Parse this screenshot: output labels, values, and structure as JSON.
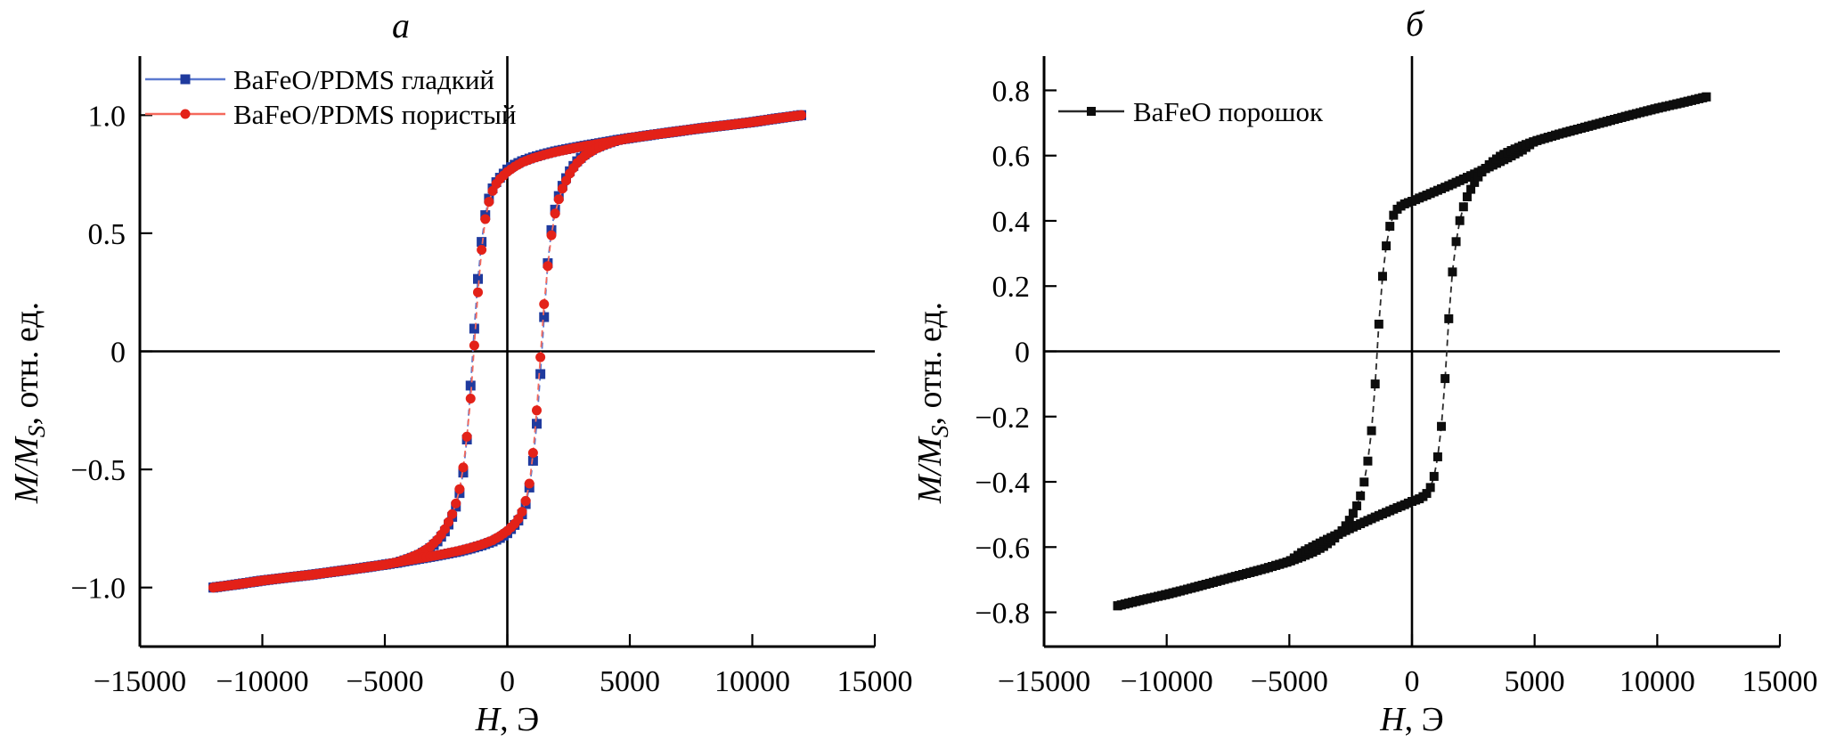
{
  "figure": {
    "background": "#ffffff",
    "description_labels": {
      "panel_a_letter": "а",
      "panel_b_letter": "б"
    }
  },
  "chart_data": [
    {
      "type": "line",
      "panel_label": "а",
      "xlabel": {
        "italic": "H",
        "rest": ", Э"
      },
      "ylabel": {
        "italic": "M/M",
        "sub": "S",
        "rest": ", отн. ед."
      },
      "xlim": [
        -15000,
        15000
      ],
      "ylim": [
        -1.25,
        1.25
      ],
      "grid": false,
      "legend_position": "upper left",
      "axis_color": "#000000",
      "x_ticks": [
        {
          "v": -15000,
          "label": "−15000"
        },
        {
          "v": -10000,
          "label": "−10000"
        },
        {
          "v": -5000,
          "label": "−5000"
        },
        {
          "v": 0,
          "label": "0"
        },
        {
          "v": 5000,
          "label": "5000"
        },
        {
          "v": 10000,
          "label": "10000"
        },
        {
          "v": 15000,
          "label": "15000"
        }
      ],
      "y_ticks": [
        {
          "v": 1.0,
          "label": "1.0"
        },
        {
          "v": 0.5,
          "label": "0.5"
        },
        {
          "v": 0,
          "label": "0"
        },
        {
          "v": -0.5,
          "label": "−0.5"
        },
        {
          "v": -1.0,
          "label": "−1.0"
        }
      ],
      "series": [
        {
          "name": "BaFeO/PDMS гладкий",
          "marker": "square",
          "marker_size": 11,
          "marker_color": "#1f3a9e",
          "line_color": "#5b79cf",
          "line_dash": "7,5",
          "marker_step_oe": 150,
          "coercivity_oe": 1450,
          "remanence": 0.77,
          "saturation": 1.0,
          "upper_branch": [
            [
              -12000,
              -1.0
            ],
            [
              -11000,
              -0.986
            ],
            [
              -10000,
              -0.971
            ],
            [
              -9000,
              -0.958
            ],
            [
              -8000,
              -0.946
            ],
            [
              -7000,
              -0.932
            ],
            [
              -6000,
              -0.918
            ],
            [
              -5000,
              -0.903
            ],
            [
              -4500,
              -0.895
            ],
            [
              -4000,
              -0.878
            ],
            [
              -3600,
              -0.862
            ],
            [
              -3200,
              -0.838
            ],
            [
              -2800,
              -0.8
            ],
            [
              -2500,
              -0.755
            ],
            [
              -2200,
              -0.69
            ],
            [
              -2000,
              -0.625
            ],
            [
              -1850,
              -0.55
            ],
            [
              -1700,
              -0.44
            ],
            [
              -1550,
              -0.24
            ],
            [
              -1450,
              -0.05
            ],
            [
              -1380,
              0.05
            ],
            [
              -1250,
              0.25
            ],
            [
              -1100,
              0.42
            ],
            [
              -950,
              0.55
            ],
            [
              -800,
              0.63
            ],
            [
              -650,
              0.68
            ],
            [
              -500,
              0.71
            ],
            [
              -300,
              0.735
            ],
            [
              0,
              0.77
            ],
            [
              300,
              0.79
            ],
            [
              600,
              0.805
            ],
            [
              1000,
              0.82
            ],
            [
              1500,
              0.835
            ],
            [
              2000,
              0.848
            ],
            [
              2500,
              0.858
            ],
            [
              3000,
              0.868
            ],
            [
              3500,
              0.877
            ],
            [
              4000,
              0.886
            ],
            [
              4500,
              0.895
            ],
            [
              5000,
              0.903
            ],
            [
              6000,
              0.918
            ],
            [
              7000,
              0.932
            ],
            [
              8000,
              0.946
            ],
            [
              9000,
              0.958
            ],
            [
              10000,
              0.97
            ],
            [
              11000,
              0.986
            ],
            [
              12000,
              1.0
            ]
          ],
          "lower_branch": "mirror_of_upper"
        },
        {
          "name": "BaFeO/PDMS пористый",
          "marker": "circle",
          "marker_size": 11,
          "marker_color": "#e32118",
          "line_color": "#f4695c",
          "line_dash": "7,5",
          "marker_step_oe": 150,
          "coercivity_oe": 1380,
          "remanence": 0.76,
          "saturation": 1.0,
          "upper_branch": [
            [
              -12000,
              -1.0
            ],
            [
              -11000,
              -0.986
            ],
            [
              -10000,
              -0.971
            ],
            [
              -9000,
              -0.958
            ],
            [
              -8000,
              -0.946
            ],
            [
              -7000,
              -0.932
            ],
            [
              -6000,
              -0.918
            ],
            [
              -5000,
              -0.903
            ],
            [
              -4500,
              -0.893
            ],
            [
              -4000,
              -0.875
            ],
            [
              -3600,
              -0.857
            ],
            [
              -3200,
              -0.832
            ],
            [
              -2800,
              -0.792
            ],
            [
              -2500,
              -0.745
            ],
            [
              -2200,
              -0.678
            ],
            [
              -2000,
              -0.61
            ],
            [
              -1850,
              -0.53
            ],
            [
              -1700,
              -0.415
            ],
            [
              -1500,
              -0.2
            ],
            [
              -1380,
              -0.02
            ],
            [
              -1300,
              0.1
            ],
            [
              -1180,
              0.28
            ],
            [
              -1050,
              0.43
            ],
            [
              -900,
              0.56
            ],
            [
              -760,
              0.63
            ],
            [
              -620,
              0.675
            ],
            [
              -480,
              0.705
            ],
            [
              -300,
              0.73
            ],
            [
              0,
              0.76
            ],
            [
              300,
              0.782
            ],
            [
              600,
              0.8
            ],
            [
              1000,
              0.816
            ],
            [
              1500,
              0.832
            ],
            [
              2000,
              0.845
            ],
            [
              2500,
              0.856
            ],
            [
              3000,
              0.866
            ],
            [
              3500,
              0.875
            ],
            [
              4000,
              0.884
            ],
            [
              4500,
              0.893
            ],
            [
              5000,
              0.903
            ],
            [
              6000,
              0.918
            ],
            [
              7000,
              0.932
            ],
            [
              8000,
              0.946
            ],
            [
              9000,
              0.958
            ],
            [
              10000,
              0.97
            ],
            [
              11000,
              0.986
            ],
            [
              12000,
              1.0
            ]
          ],
          "lower_branch": "mirror_of_upper"
        }
      ]
    },
    {
      "type": "line",
      "panel_label": "б",
      "xlabel": {
        "italic": "H",
        "rest": ", Э"
      },
      "ylabel": {
        "italic": "M/M",
        "sub": "S",
        "rest": ", отн. ед."
      },
      "xlim": [
        -15000,
        15000
      ],
      "ylim": [
        -0.905,
        0.905
      ],
      "grid": false,
      "legend_position": "upper left",
      "axis_color": "#000000",
      "x_ticks": [
        {
          "v": -15000,
          "label": "−15000"
        },
        {
          "v": -10000,
          "label": "−10000"
        },
        {
          "v": -5000,
          "label": "−5000"
        },
        {
          "v": 0,
          "label": "0"
        },
        {
          "v": 5000,
          "label": "5000"
        },
        {
          "v": 10000,
          "label": "10000"
        },
        {
          "v": 15000,
          "label": "15000"
        }
      ],
      "y_ticks": [
        {
          "v": 0.8,
          "label": "0.8"
        },
        {
          "v": 0.6,
          "label": "0.6"
        },
        {
          "v": 0.4,
          "label": "0.4"
        },
        {
          "v": 0.2,
          "label": "0.2"
        },
        {
          "v": 0,
          "label": "0"
        },
        {
          "v": -0.2,
          "label": "−0.2"
        },
        {
          "v": -0.4,
          "label": "−0.4"
        },
        {
          "v": -0.6,
          "label": "−0.6"
        },
        {
          "v": -0.8,
          "label": "−0.8"
        }
      ],
      "series": [
        {
          "name": "BaFeO порошок",
          "marker": "square",
          "marker_size": 10,
          "marker_color": "#0d0d0d",
          "line_color": "#2a2a2a",
          "line_dash": "7,5",
          "marker_step_oe": 150,
          "coercivity_oe": 1420,
          "remanence": 0.46,
          "saturation": 0.78,
          "upper_branch": [
            [
              -12000,
              -0.78
            ],
            [
              -11000,
              -0.762
            ],
            [
              -10000,
              -0.745
            ],
            [
              -9000,
              -0.726
            ],
            [
              -8000,
              -0.706
            ],
            [
              -7000,
              -0.686
            ],
            [
              -6000,
              -0.666
            ],
            [
              -5500,
              -0.655
            ],
            [
              -5000,
              -0.644
            ],
            [
              -4500,
              -0.63
            ],
            [
              -4000,
              -0.614
            ],
            [
              -3600,
              -0.598
            ],
            [
              -3200,
              -0.576
            ],
            [
              -2800,
              -0.546
            ],
            [
              -2500,
              -0.512
            ],
            [
              -2200,
              -0.466
            ],
            [
              -2000,
              -0.42
            ],
            [
              -1850,
              -0.362
            ],
            [
              -1700,
              -0.285
            ],
            [
              -1550,
              -0.16
            ],
            [
              -1450,
              -0.04
            ],
            [
              -1380,
              0.05
            ],
            [
              -1250,
              0.195
            ],
            [
              -1100,
              0.3
            ],
            [
              -950,
              0.37
            ],
            [
              -800,
              0.41
            ],
            [
              -650,
              0.432
            ],
            [
              -500,
              0.443
            ],
            [
              -300,
              0.452
            ],
            [
              0,
              0.46
            ],
            [
              300,
              0.47
            ],
            [
              600,
              0.479
            ],
            [
              1000,
              0.492
            ],
            [
              1500,
              0.508
            ],
            [
              2000,
              0.525
            ],
            [
              2500,
              0.542
            ],
            [
              3000,
              0.56
            ],
            [
              3500,
              0.578
            ],
            [
              4000,
              0.597
            ],
            [
              4500,
              0.617
            ],
            [
              5000,
              0.644
            ],
            [
              5500,
              0.655
            ],
            [
              6000,
              0.666
            ],
            [
              7000,
              0.686
            ],
            [
              8000,
              0.706
            ],
            [
              9000,
              0.726
            ],
            [
              10000,
              0.745
            ],
            [
              11000,
              0.762
            ],
            [
              12000,
              0.78
            ]
          ],
          "lower_branch": "mirror_of_upper"
        }
      ]
    }
  ]
}
